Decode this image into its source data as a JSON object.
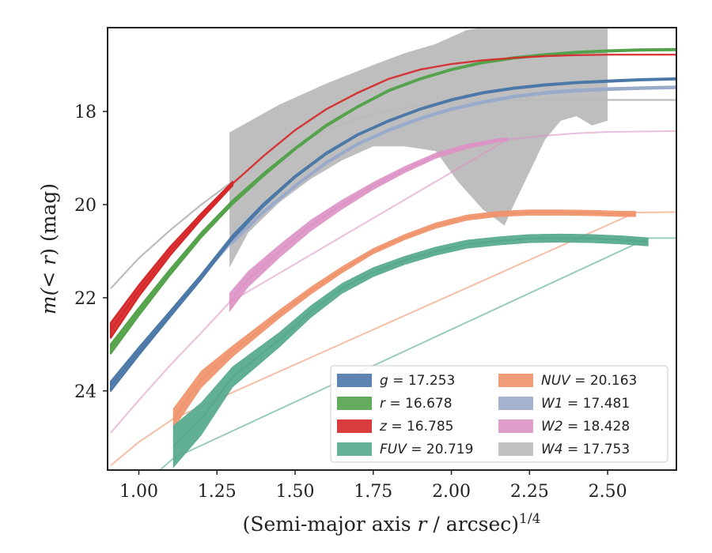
{
  "chart_data": {
    "type": "line",
    "xlabel_main": "(Semi-major axis ",
    "xlabel_var": "r",
    "xlabel_tail": " / arcsec)",
    "xlabel_sup": "1/4",
    "ylabel_main": "m(< ",
    "ylabel_var": "r",
    "ylabel_tail": ") (mag)",
    "xlim": [
      0.9,
      2.72
    ],
    "ylim": [
      25.7,
      16.2
    ],
    "y_inverted": true,
    "x_ticks": [
      1.0,
      1.25,
      1.5,
      1.75,
      2.0,
      2.25,
      2.5
    ],
    "x_tick_labels": [
      "1.00",
      "1.25",
      "1.50",
      "1.75",
      "2.00",
      "2.25",
      "2.50"
    ],
    "y_ticks": [
      18,
      20,
      22,
      24
    ],
    "y_tick_labels": [
      "18",
      "20",
      "22",
      "24"
    ],
    "grid": false,
    "legend_position": "lower-right",
    "series": [
      {
        "name": "g = 17.253",
        "var": "g",
        "value": "17.253",
        "color": "#4c78a8",
        "x": [
          0.91,
          1.0,
          1.1,
          1.2,
          1.3,
          1.4,
          1.5,
          1.6,
          1.7,
          1.8,
          1.9,
          2.0,
          2.1,
          2.2,
          2.3,
          2.4,
          2.5,
          2.6,
          2.72
        ],
        "y": [
          23.9,
          23.15,
          22.35,
          21.55,
          20.7,
          20.0,
          19.4,
          18.9,
          18.5,
          18.2,
          17.95,
          17.75,
          17.6,
          17.5,
          17.43,
          17.38,
          17.35,
          17.32,
          17.3
        ],
        "band_x": [
          0.91,
          1.0,
          1.1,
          1.2,
          1.3,
          1.4,
          1.5,
          1.6,
          1.7,
          1.8,
          1.9,
          2.0,
          2.1,
          2.2,
          2.3,
          2.4,
          2.5,
          2.6,
          2.72
        ],
        "band_hw": [
          0.1,
          0.08,
          0.06,
          0.05,
          0.04,
          0.03,
          0.02,
          0.02,
          0.015,
          0.015,
          0.015,
          0.015,
          0.015,
          0.015,
          0.015,
          0.015,
          0.015,
          0.015,
          0.015
        ],
        "ext_x": [],
        "ext_y": []
      },
      {
        "name": "r = 16.678",
        "var": "r",
        "value": "16.678",
        "color": "#54a24b",
        "x": [
          0.91,
          1.0,
          1.1,
          1.2,
          1.3,
          1.4,
          1.5,
          1.6,
          1.7,
          1.8,
          1.9,
          2.0,
          2.1,
          2.2,
          2.3,
          2.4,
          2.5,
          2.6,
          2.72
        ],
        "y": [
          23.1,
          22.3,
          21.45,
          20.65,
          19.95,
          19.35,
          18.8,
          18.3,
          17.9,
          17.55,
          17.3,
          17.1,
          16.95,
          16.85,
          16.78,
          16.73,
          16.7,
          16.68,
          16.67
        ],
        "band_x": [
          0.91,
          1.0,
          1.1,
          1.2,
          1.3,
          1.4,
          1.5,
          1.6,
          1.7,
          1.8,
          1.9,
          2.0,
          2.1,
          2.2,
          2.3,
          2.4,
          2.5,
          2.6,
          2.72
        ],
        "band_hw": [
          0.1,
          0.08,
          0.06,
          0.05,
          0.04,
          0.03,
          0.02,
          0.02,
          0.015,
          0.015,
          0.015,
          0.015,
          0.015,
          0.015,
          0.015,
          0.015,
          0.015,
          0.015,
          0.015
        ],
        "ext_x": [],
        "ext_y": []
      },
      {
        "name": "z = 16.785",
        "var": "z",
        "value": "16.785",
        "color": "#d62728",
        "x": [
          0.91,
          1.0,
          1.1,
          1.2,
          1.3,
          1.4,
          1.5,
          1.6,
          1.7,
          1.8,
          1.9,
          2.0,
          2.1,
          2.2,
          2.3,
          2.4,
          2.5,
          2.6,
          2.72
        ],
        "y": [
          22.7,
          21.85,
          21.0,
          20.25,
          19.55,
          18.95,
          18.4,
          17.95,
          17.6,
          17.3,
          17.1,
          16.98,
          16.9,
          16.85,
          16.81,
          16.79,
          16.78,
          16.78,
          16.78
        ],
        "band_x": [
          0.91,
          1.0,
          1.1,
          1.2,
          1.3
        ],
        "band_hw": [
          0.16,
          0.12,
          0.09,
          0.06,
          0.04
        ],
        "ext_x": [],
        "ext_y": []
      },
      {
        "name": "FUV = 20.719",
        "var": "FUV",
        "value": "20.719",
        "color": "#54a88c",
        "x": [
          1.11,
          1.2,
          1.3,
          1.45,
          1.55,
          1.65,
          1.75,
          1.85,
          1.95,
          2.05,
          2.15,
          2.25,
          2.35,
          2.45,
          2.55,
          2.63
        ],
        "y": [
          25.2,
          24.6,
          23.7,
          22.9,
          22.3,
          21.8,
          21.45,
          21.2,
          21.0,
          20.85,
          20.78,
          20.73,
          20.72,
          20.73,
          20.76,
          20.8
        ],
        "band_x": [
          1.11,
          1.2,
          1.3,
          1.45,
          1.55,
          1.65,
          1.75,
          1.85,
          1.95,
          2.05,
          2.15,
          2.25,
          2.35,
          2.45,
          2.55,
          2.63
        ],
        "band_hw": [
          0.45,
          0.35,
          0.22,
          0.16,
          0.13,
          0.11,
          0.1,
          0.09,
          0.09,
          0.09,
          0.09,
          0.09,
          0.09,
          0.09,
          0.09,
          0.09
        ],
        "ext_x": [
          1.05,
          1.11,
          2.63,
          2.72
        ],
        "ext_y": [
          25.8,
          25.45,
          20.72,
          20.72
        ]
      },
      {
        "name": "NUV = 20.163",
        "var": "NUV",
        "value": "20.163",
        "color": "#f0926a",
        "x": [
          1.11,
          1.2,
          1.3,
          1.45,
          1.55,
          1.65,
          1.75,
          1.85,
          1.95,
          2.05,
          2.15,
          2.25,
          2.35,
          2.45,
          2.55,
          2.59
        ],
        "y": [
          24.6,
          23.75,
          23.15,
          22.35,
          21.85,
          21.4,
          21.0,
          20.7,
          20.45,
          20.28,
          20.2,
          20.17,
          20.17,
          20.18,
          20.2,
          20.2
        ],
        "band_x": [
          1.11,
          1.2,
          1.3,
          1.45,
          1.55,
          1.65,
          1.75,
          1.85,
          1.95,
          2.05,
          2.15,
          2.25,
          2.35,
          2.45,
          2.55,
          2.59
        ],
        "band_hw": [
          0.22,
          0.18,
          0.12,
          0.09,
          0.08,
          0.07,
          0.06,
          0.06,
          0.06,
          0.06,
          0.06,
          0.06,
          0.06,
          0.06,
          0.06,
          0.06
        ],
        "ext_x": [
          0.91,
          1.0,
          1.11,
          2.59,
          2.72
        ],
        "ext_y": [
          25.6,
          25.1,
          24.6,
          20.17,
          20.16
        ]
      },
      {
        "name": "W1 = 17.481",
        "var": "W1",
        "value": "17.481",
        "color": "#9aaacb",
        "x": [
          0.91,
          1.0,
          1.1,
          1.2,
          1.3,
          1.4,
          1.5,
          1.6,
          1.7,
          1.8,
          1.9,
          2.0,
          2.1,
          2.2,
          2.3,
          2.4,
          2.5,
          2.6,
          2.72
        ],
        "y": [
          23.85,
          23.2,
          22.4,
          21.55,
          20.8,
          20.15,
          19.6,
          19.1,
          18.7,
          18.4,
          18.15,
          17.95,
          17.8,
          17.68,
          17.6,
          17.55,
          17.52,
          17.5,
          17.48
        ],
        "band_x": [
          1.3,
          1.4,
          1.5,
          1.6,
          1.7,
          1.8,
          1.9,
          2.0,
          2.1,
          2.2,
          2.3,
          2.4,
          2.5,
          2.6,
          2.72
        ],
        "band_hw": [
          0.03,
          0.02,
          0.02,
          0.02,
          0.02,
          0.02,
          0.02,
          0.02,
          0.02,
          0.02,
          0.02,
          0.02,
          0.02,
          0.02,
          0.02
        ],
        "ext_x": [],
        "ext_y": []
      },
      {
        "name": "W2 = 18.428",
        "var": "W2",
        "value": "18.428",
        "color": "#dc92c4",
        "x": [
          1.29,
          1.35,
          1.45,
          1.55,
          1.65,
          1.75,
          1.85,
          1.95,
          2.05,
          2.15,
          2.18
        ],
        "y": [
          22.1,
          21.6,
          21.0,
          20.45,
          20.0,
          19.6,
          19.25,
          18.95,
          18.75,
          18.62,
          18.6
        ],
        "band_x": [
          1.29,
          1.35,
          1.45,
          1.55,
          1.65,
          1.75,
          1.85,
          1.95,
          2.05,
          2.15,
          2.18
        ],
        "band_hw": [
          0.2,
          0.17,
          0.14,
          0.12,
          0.1,
          0.08,
          0.07,
          0.06,
          0.05,
          0.04,
          0.04
        ],
        "ext_x": [
          0.91,
          1.0,
          1.1,
          1.2,
          1.29,
          2.18,
          2.3,
          2.4,
          2.5,
          2.6,
          2.72
        ],
        "ext_y": [
          24.9,
          24.2,
          23.45,
          22.75,
          22.1,
          18.6,
          18.52,
          18.47,
          18.44,
          18.43,
          18.42
        ]
      },
      {
        "name": "W4 = 17.753",
        "var": "W4",
        "value": "17.753",
        "color": "#bbbbbb",
        "x": [
          0.91,
          1.0,
          1.1,
          1.2,
          1.3,
          1.4,
          1.5,
          1.6,
          1.7,
          1.8,
          1.9,
          2.0,
          2.1,
          2.2,
          2.3,
          2.4,
          2.5,
          2.6,
          2.72
        ],
        "y": [
          21.8,
          21.15,
          20.55,
          20.0,
          19.5,
          19.05,
          18.7,
          18.4,
          18.15,
          17.98,
          17.87,
          17.81,
          17.78,
          17.76,
          17.755,
          17.753,
          17.753,
          17.753,
          17.753
        ],
        "band_x": [],
        "band_hw": [],
        "poly_upper_x": [
          1.29,
          1.45,
          1.6,
          1.75,
          1.85,
          1.95,
          2.05,
          2.1,
          2.2,
          2.3,
          2.35,
          2.5
        ],
        "poly_upper_y": [
          18.45,
          17.85,
          17.4,
          17.0,
          16.75,
          16.55,
          16.25,
          16.2,
          16.2,
          16.2,
          16.2,
          16.2
        ],
        "poly_lower_x": [
          1.29,
          1.35,
          1.45,
          1.55,
          1.65,
          1.75,
          1.85,
          1.95,
          2.02,
          2.1,
          2.17,
          2.2,
          2.25,
          2.3,
          2.35,
          2.4,
          2.45,
          2.5
        ],
        "poly_lower_y": [
          21.35,
          20.6,
          19.95,
          19.45,
          19.05,
          18.75,
          18.75,
          18.85,
          19.5,
          20.1,
          20.45,
          20.0,
          19.3,
          18.6,
          18.2,
          18.1,
          18.3,
          18.2
        ],
        "ext_x": [],
        "ext_y": []
      }
    ]
  }
}
